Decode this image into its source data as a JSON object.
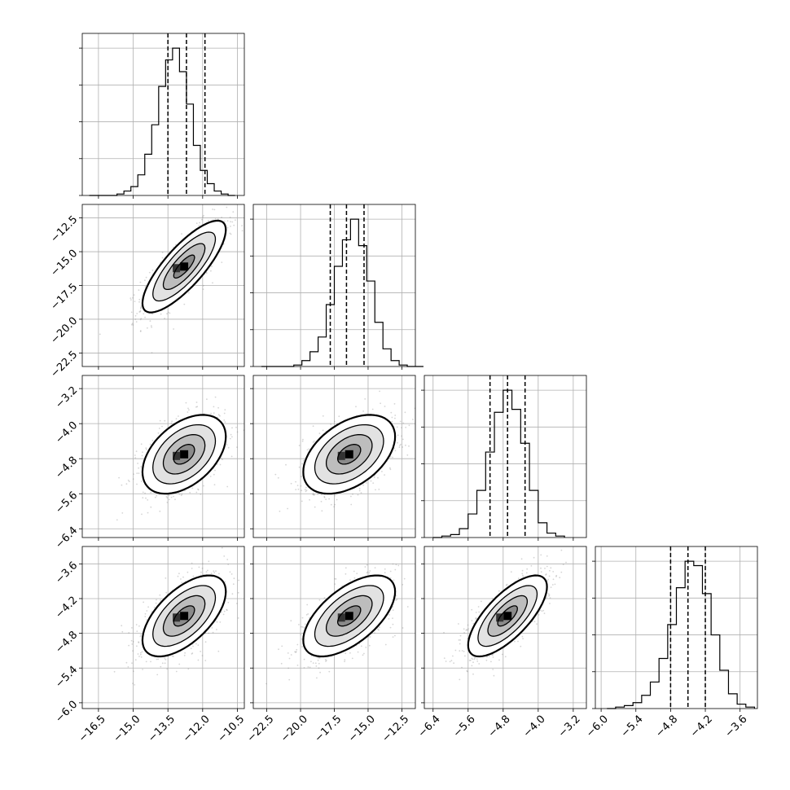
{
  "chart_data": {
    "type": "corner",
    "grid": true,
    "n_params": 4,
    "params": [
      {
        "axis_range": [
          -17.2,
          -10.2
        ],
        "ticks": [
          -16.5,
          -15.0,
          -13.5,
          -12.0,
          -10.5
        ],
        "tick_labels": [
          "−16.5",
          "−15.0",
          "−13.5",
          "−12.0",
          "−10.5"
        ],
        "quantiles": [
          -13.5,
          -12.7,
          -11.9
        ],
        "hist_edges_start": -16.9,
        "hist_bin_width": 0.3,
        "hist_counts": [
          0,
          0,
          0,
          0,
          1,
          3,
          6,
          14,
          28,
          48,
          74,
          92,
          100,
          84,
          62,
          34,
          17,
          8,
          3,
          1,
          0
        ]
      },
      {
        "axis_range": [
          -23.5,
          -11.5
        ],
        "ticks": [
          -22.5,
          -20.0,
          -17.5,
          -15.0,
          -12.5
        ],
        "tick_labels": [
          "−22.5",
          "−20.0",
          "−17.5",
          "−15.0",
          "−12.5"
        ],
        "quantiles": [
          -17.8,
          -16.6,
          -15.3
        ],
        "hist_edges_start": -22.9,
        "hist_bin_width": 0.6,
        "hist_counts": [
          0,
          0,
          0,
          0,
          1,
          4,
          10,
          20,
          42,
          68,
          86,
          100,
          82,
          58,
          30,
          12,
          4,
          1,
          0,
          0
        ]
      },
      {
        "axis_range": [
          -6.6,
          -2.9
        ],
        "ticks": [
          -6.4,
          -5.6,
          -4.8,
          -4.0,
          -3.2
        ],
        "tick_labels": [
          "−6.4",
          "−5.6",
          "−4.8",
          "−4.0",
          "−3.2"
        ],
        "quantiles": [
          -5.1,
          -4.7,
          -4.3
        ],
        "hist_edges_start": -6.4,
        "hist_bin_width": 0.2,
        "hist_counts": [
          0,
          1,
          2,
          6,
          16,
          32,
          58,
          85,
          100,
          87,
          64,
          32,
          10,
          3,
          1
        ]
      },
      {
        "axis_range": [
          -6.1,
          -3.3
        ],
        "ticks": [
          -6.0,
          -5.4,
          -4.8,
          -4.2,
          -3.6
        ],
        "tick_labels": [
          "−6.0",
          "−5.4",
          "−4.8",
          "−4.2",
          "−3.6"
        ],
        "quantiles": [
          -4.8,
          -4.5,
          -4.2
        ],
        "hist_edges_start": -5.9,
        "hist_bin_width": 0.15,
        "hist_counts": [
          0,
          1,
          2,
          4,
          9,
          18,
          34,
          57,
          82,
          100,
          97,
          78,
          50,
          26,
          10,
          3,
          1
        ]
      }
    ],
    "pairs": [
      {
        "x_param": 0,
        "y_param": 1,
        "mean": [
          -12.8,
          -16.1
        ],
        "sd": [
          0.9,
          1.7
        ],
        "corr": 0.8
      },
      {
        "x_param": 0,
        "y_param": 2,
        "mean": [
          -12.8,
          -4.7
        ],
        "sd": [
          0.9,
          0.45
        ],
        "corr": 0.45
      },
      {
        "x_param": 1,
        "y_param": 2,
        "mean": [
          -16.4,
          -4.7
        ],
        "sd": [
          1.7,
          0.45
        ],
        "corr": 0.45
      },
      {
        "x_param": 0,
        "y_param": 3,
        "mean": [
          -12.8,
          -4.5
        ],
        "sd": [
          0.9,
          0.35
        ],
        "corr": 0.6
      },
      {
        "x_param": 1,
        "y_param": 3,
        "mean": [
          -16.4,
          -4.5
        ],
        "sd": [
          1.7,
          0.35
        ],
        "corr": 0.6
      },
      {
        "x_param": 2,
        "y_param": 3,
        "mean": [
          -4.7,
          -4.5
        ],
        "sd": [
          0.45,
          0.35
        ],
        "corr": 0.72
      }
    ],
    "contour_levels_sigma": [
      0.5,
      1.0,
      1.5,
      2.0
    ]
  }
}
